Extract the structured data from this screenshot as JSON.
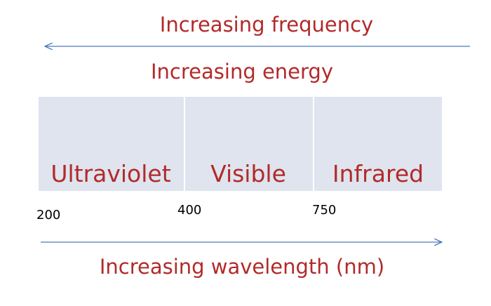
{
  "top_arrow": {
    "label": "Increasing frequency"
  },
  "energy_label": "Increasing energy",
  "regions": [
    {
      "label": "Ultraviolet"
    },
    {
      "label": "Visible"
    },
    {
      "label": "Infrared"
    }
  ],
  "scale": [
    200,
    400,
    750
  ],
  "bottom_arrow": {
    "label": "Increasing wavelength (nm)"
  }
}
